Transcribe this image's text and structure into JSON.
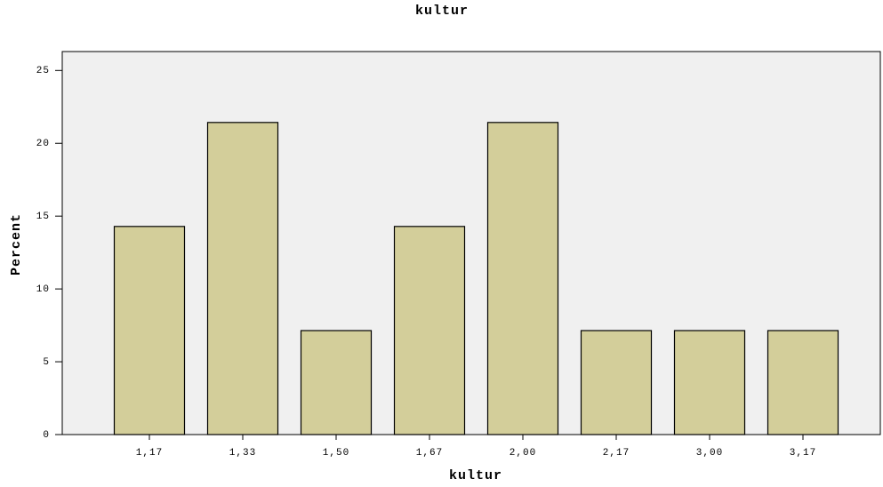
{
  "chart_data": {
    "type": "bar",
    "title": "kultur",
    "x_label": "kultur",
    "y_label": "Percent",
    "categories": [
      "1,17",
      "1,33",
      "1,50",
      "1,67",
      "2,00",
      "2,17",
      "3,00",
      "3,17"
    ],
    "values": [
      14.29,
      21.43,
      7.14,
      14.29,
      21.43,
      7.14,
      7.14,
      7.14
    ],
    "color": "#d3ce9a",
    "ylim": [
      0,
      26.3
    ],
    "yticks": [
      0,
      5,
      10,
      15,
      20,
      25
    ],
    "grid": false
  }
}
